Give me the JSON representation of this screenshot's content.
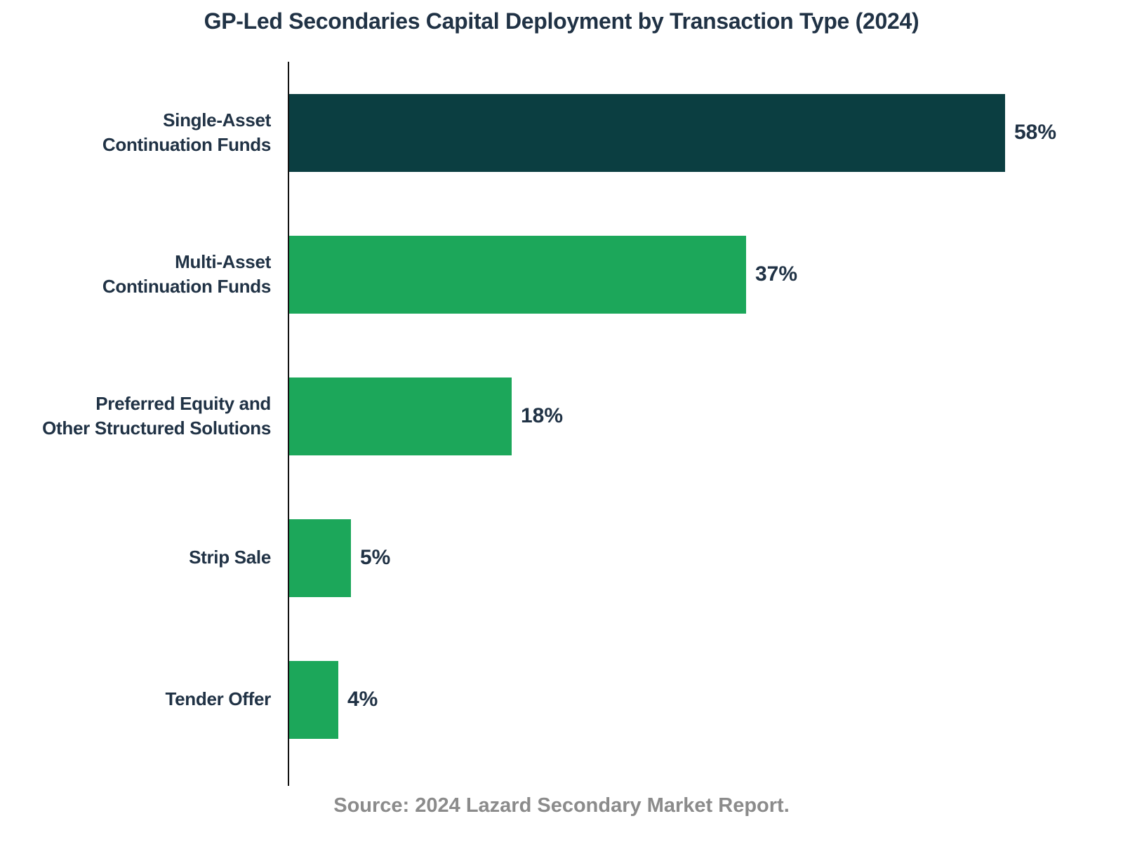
{
  "title": "GP-Led Secondaries Capital Deployment by Transaction Type (2024)",
  "source": "Source: 2024 Lazard Secondary Market Report.",
  "colors": {
    "highlight_bar": "#0b3e41",
    "bar_green": "#1ca75a",
    "text": "#203245",
    "source_text": "#8b8b8b",
    "axis": "#111111",
    "background": "#ffffff"
  },
  "chart_data": {
    "type": "bar",
    "orientation": "horizontal",
    "title": "GP-Led Secondaries Capital Deployment by Transaction Type (2024)",
    "categories": [
      "Single-Asset Continuation Funds",
      "Multi-Asset Continuation Funds",
      "Preferred Equity and Other Structured Solutions",
      "Strip Sale",
      "Tender Offer"
    ],
    "category_lines": [
      [
        "Single-Asset",
        "Continuation Funds"
      ],
      [
        "Multi-Asset",
        "Continuation Funds"
      ],
      [
        "Preferred Equity and",
        "Other Structured Solutions"
      ],
      [
        "Strip Sale"
      ],
      [
        "Tender Offer"
      ]
    ],
    "values": [
      58,
      37,
      18,
      5,
      4
    ],
    "value_labels": [
      "58%",
      "37%",
      "18%",
      "5%",
      "4%"
    ],
    "bar_colors": [
      "#0b3e41",
      "#1ca75a",
      "#1ca75a",
      "#1ca75a",
      "#1ca75a"
    ],
    "unit": "%",
    "xlabel": "",
    "ylabel": "",
    "xlim": [
      0,
      67
    ],
    "grid": false,
    "legend": false,
    "source": "Source: 2024 Lazard Secondary Market Report."
  }
}
